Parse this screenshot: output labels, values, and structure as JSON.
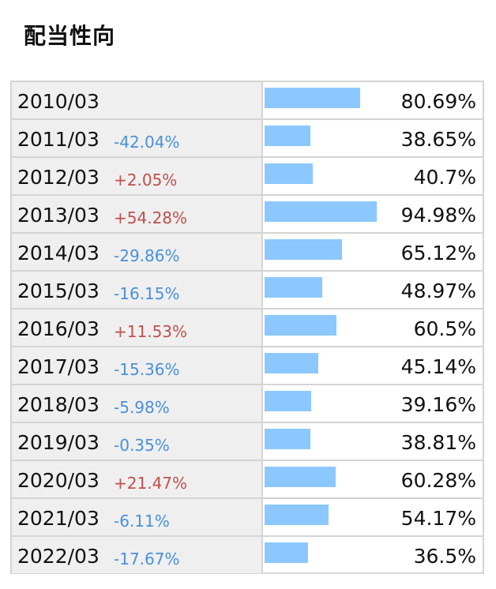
{
  "title": "配当性向",
  "colors": {
    "bar": "#8cc8ff",
    "negative": "#4a90d9",
    "positive": "#c0504d",
    "label_bg": "#efefef",
    "border": "#d4d4d4"
  },
  "chart_data": {
    "type": "bar",
    "orientation": "horizontal",
    "title": "配当性向",
    "categories": [
      "2010/03",
      "2011/03",
      "2012/03",
      "2013/03",
      "2014/03",
      "2015/03",
      "2016/03",
      "2017/03",
      "2018/03",
      "2019/03",
      "2020/03",
      "2021/03",
      "2022/03"
    ],
    "values": [
      80.69,
      38.65,
      40.7,
      94.98,
      65.12,
      48.97,
      60.5,
      45.14,
      39.16,
      38.81,
      60.28,
      54.17,
      36.5
    ],
    "value_labels": [
      "80.69%",
      "38.65%",
      "40.7%",
      "94.98%",
      "65.12%",
      "48.97%",
      "60.5%",
      "45.14%",
      "39.16%",
      "38.81%",
      "60.28%",
      "54.17%",
      "36.5%"
    ],
    "changes": [
      "",
      "-42.04%",
      "+2.05%",
      "+54.28%",
      "-29.86%",
      "-16.15%",
      "+11.53%",
      "-15.36%",
      "-5.98%",
      "-0.35%",
      "+21.47%",
      "-6.11%",
      "-17.67%"
    ],
    "xlim": [
      0,
      100
    ],
    "grid": false,
    "legend": "none"
  }
}
